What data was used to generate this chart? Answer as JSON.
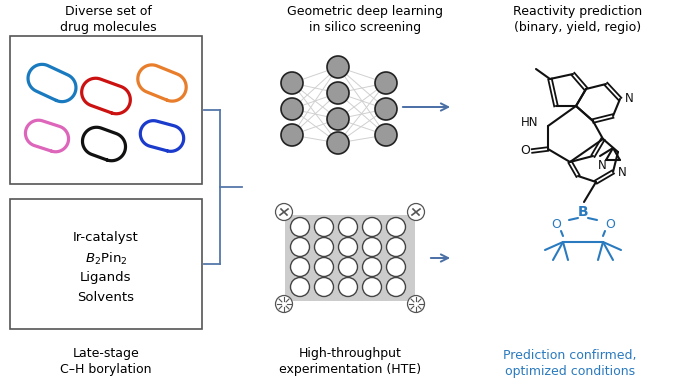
{
  "title_left": "Diverse set of\ndrug molecules",
  "title_middle": "Geometric deep learning\nin silico screening",
  "title_right": "Reactivity prediction\n(binary, yield, regio)",
  "caption_left": "Late-stage\nC–H borylation",
  "caption_middle": "High-throughput\nexperimentation (HTE)",
  "caption_right": "Prediction confirmed,\noptimized conditions",
  "pill_colors": [
    "#1a7abf",
    "#cc1111",
    "#e87d2b",
    "#dd66bb",
    "#111111",
    "#1a3bcc"
  ],
  "node_color": "#9a9a9a",
  "node_edge": "#222222",
  "arrow_color": "#4a6fa5",
  "bracket_color": "#5577aa",
  "text_color_blue": "#2a7abf",
  "background": "#ffffff",
  "box_edge": "#555555",
  "mol_color": "#111111",
  "plate_bg": "#cccccc"
}
